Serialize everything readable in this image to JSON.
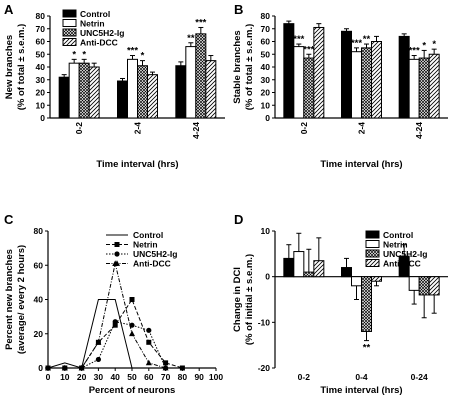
{
  "chart_data": [
    {
      "panel": "A",
      "type": "bar",
      "ylabel": "New branches",
      "ylabel2": "(% of total ± s.e.m.)",
      "xlabel": "Time interval (hrs)",
      "categories": [
        "0-2",
        "2-4",
        "4-24"
      ],
      "ylim": [
        0,
        80
      ],
      "yticks": [
        0,
        10,
        20,
        30,
        40,
        50,
        60,
        70,
        80
      ],
      "legend": "top-left",
      "series": [
        {
          "name": "Control",
          "pattern": "solid",
          "values": [
            32,
            29,
            41
          ],
          "errors": [
            2,
            2,
            3
          ]
        },
        {
          "name": "Netrin",
          "pattern": "open",
          "values": [
            43,
            46,
            56
          ],
          "errors": [
            3,
            3,
            3
          ]
        },
        {
          "name": "UNC5H2-Ig",
          "pattern": "cross",
          "values": [
            43,
            41,
            66
          ],
          "errors": [
            3,
            4,
            5
          ]
        },
        {
          "name": "Anti-DCC",
          "pattern": "hatch",
          "values": [
            40,
            34,
            45
          ],
          "errors": [
            3,
            2,
            4
          ]
        }
      ],
      "annotations": [
        {
          "category": 0,
          "series": 1,
          "text": "*"
        },
        {
          "category": 0,
          "series": 2,
          "text": "*"
        },
        {
          "category": 1,
          "series": 1,
          "text": "***"
        },
        {
          "category": 1,
          "series": 2,
          "text": "*"
        },
        {
          "category": 2,
          "series": 1,
          "text": "**"
        },
        {
          "category": 2,
          "series": 2,
          "text": "***"
        }
      ]
    },
    {
      "panel": "B",
      "type": "bar",
      "ylabel": "Stable branches",
      "ylabel2": "(% of total ± s.e.m.)",
      "xlabel": "Time interval (hrs)",
      "categories": [
        "0-2",
        "2-4",
        "4-24"
      ],
      "ylim": [
        0,
        80
      ],
      "yticks": [
        0,
        10,
        20,
        30,
        40,
        50,
        60,
        70,
        80
      ],
      "series": [
        {
          "name": "Control",
          "pattern": "solid",
          "values": [
            74,
            68,
            64
          ],
          "errors": [
            2,
            2,
            2
          ]
        },
        {
          "name": "Netrin",
          "pattern": "open",
          "values": [
            56,
            52,
            46
          ],
          "errors": [
            2,
            3,
            3
          ]
        },
        {
          "name": "UNC5H2-Ig",
          "pattern": "cross",
          "values": [
            47,
            55,
            47
          ],
          "errors": [
            3,
            3,
            6
          ]
        },
        {
          "name": "Anti-DCC",
          "pattern": "hatch",
          "values": [
            71,
            60,
            50
          ],
          "errors": [
            3,
            4,
            4
          ]
        }
      ],
      "annotations": [
        {
          "category": 0,
          "series": 1,
          "text": "***"
        },
        {
          "category": 0,
          "series": 2,
          "text": "***"
        },
        {
          "category": 1,
          "series": 1,
          "text": "***"
        },
        {
          "category": 1,
          "series": 2,
          "text": "**"
        },
        {
          "category": 2,
          "series": 1,
          "text": "***"
        },
        {
          "category": 2,
          "series": 2,
          "text": "*"
        },
        {
          "category": 2,
          "series": 3,
          "text": "*"
        }
      ]
    },
    {
      "panel": "C",
      "type": "line",
      "ylabel": "Percent new branches",
      "ylabel2": "(average/ every 2 hours)",
      "xlabel": "Percent of neurons",
      "xlim": [
        0,
        100
      ],
      "xticks": [
        0,
        10,
        20,
        30,
        40,
        50,
        60,
        70,
        80,
        90,
        100
      ],
      "ylim": [
        0,
        80
      ],
      "yticks": [
        0,
        20,
        40,
        60,
        80
      ],
      "legend": "top-right",
      "series": [
        {
          "name": "Control",
          "style": "solid",
          "marker": "none",
          "points": [
            [
              0,
              0
            ],
            [
              10,
              3
            ],
            [
              20,
              0
            ],
            [
              30,
              40
            ],
            [
              40,
              40
            ],
            [
              50,
              0
            ],
            [
              60,
              0
            ]
          ]
        },
        {
          "name": "Netrin",
          "style": "dashed",
          "marker": "square",
          "points": [
            [
              0,
              0
            ],
            [
              10,
              0
            ],
            [
              20,
              0
            ],
            [
              30,
              15
            ],
            [
              40,
              25
            ],
            [
              50,
              40
            ],
            [
              60,
              15
            ],
            [
              70,
              3
            ],
            [
              80,
              0
            ]
          ]
        },
        {
          "name": "UNC5H2-Ig",
          "style": "dotted",
          "marker": "circle",
          "points": [
            [
              0,
              0
            ],
            [
              10,
              0
            ],
            [
              20,
              0
            ],
            [
              30,
              5
            ],
            [
              40,
              27
            ],
            [
              50,
              25
            ],
            [
              60,
              22
            ],
            [
              70,
              0
            ]
          ]
        },
        {
          "name": "Anti-DCC",
          "style": "dashdot",
          "marker": "triangle",
          "points": [
            [
              0,
              0
            ],
            [
              10,
              0
            ],
            [
              20,
              0
            ],
            [
              30,
              15
            ],
            [
              40,
              61
            ],
            [
              50,
              20
            ],
            [
              60,
              3
            ],
            [
              70,
              0
            ]
          ]
        }
      ]
    },
    {
      "panel": "D",
      "type": "bar",
      "ylabel": "Change in DCI",
      "ylabel2": "(% of initial ± s.e.m.)",
      "xlabel": "Time interval (hrs)",
      "categories": [
        "0-2",
        "0-4",
        "0-24"
      ],
      "ylim": [
        -20,
        10
      ],
      "yticks": [
        -20,
        -10,
        0,
        10
      ],
      "legend": "top-right",
      "series": [
        {
          "name": "Control",
          "pattern": "solid",
          "values": [
            4,
            2,
            4.5
          ],
          "errors": [
            3,
            2,
            2.5
          ]
        },
        {
          "name": "Netrin",
          "pattern": "open",
          "values": [
            5.5,
            -2,
            -3
          ],
          "errors": [
            4,
            3,
            3
          ]
        },
        {
          "name": "UNC5H2-Ig",
          "pattern": "cross",
          "values": [
            1,
            -12,
            -4
          ],
          "errors": [
            5,
            2,
            5
          ]
        },
        {
          "name": "Anti-DCC",
          "pattern": "hatch",
          "values": [
            3.5,
            -1,
            -4
          ],
          "errors": [
            5,
            1,
            4
          ]
        }
      ],
      "annotations": [
        {
          "category": 1,
          "series": 2,
          "text": "**"
        }
      ]
    }
  ]
}
